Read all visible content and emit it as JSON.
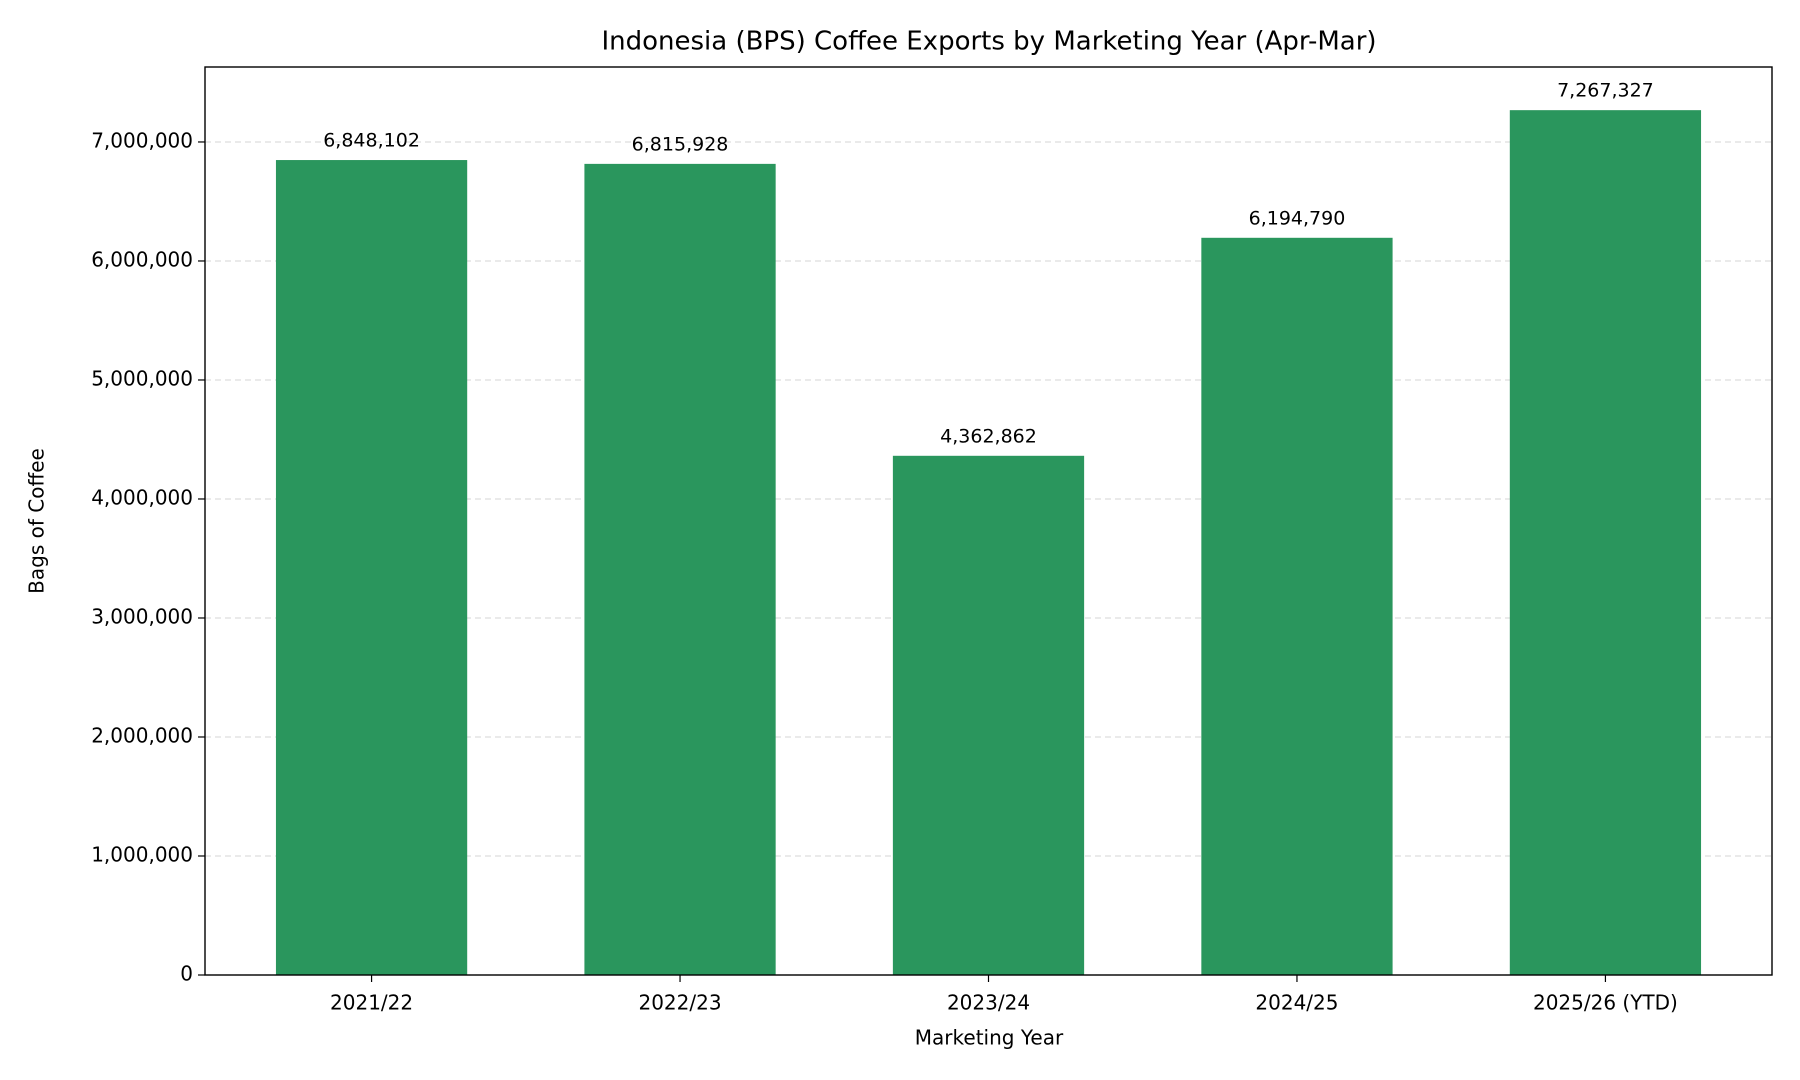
{
  "chart_data": {
    "type": "bar",
    "title": "Indonesia (BPS) Coffee Exports by Marketing Year (Apr-Mar)",
    "x_label": "Marketing Year",
    "y_label": "Bags of Coffee",
    "categories": [
      "2021/22",
      "2022/23",
      "2023/24",
      "2024/25",
      "2025/26 (YTD)"
    ],
    "values": [
      6848102,
      6815928,
      4362862,
      6194790,
      7267327
    ],
    "value_labels": [
      "6,848,102",
      "6,815,928",
      "4,362,862",
      "6,194,790",
      "7,267,327"
    ],
    "color": "#2a965d",
    "ylim": [
      0,
      7630000
    ],
    "yticks": [
      0,
      {
        "value": 1000000,
        "label": "1,000,000"
      },
      {
        "value": 2000000,
        "label": "2,000,000"
      },
      {
        "value": 3000000,
        "label": "3,000,000"
      },
      {
        "value": 4000000,
        "label": "4,000,000"
      },
      {
        "value": 5000000,
        "label": "5,000,000"
      },
      {
        "value": 6000000,
        "label": "6,000,000"
      },
      {
        "value": 7000000,
        "label": "7,000,000"
      }
    ],
    "grid": true
  }
}
